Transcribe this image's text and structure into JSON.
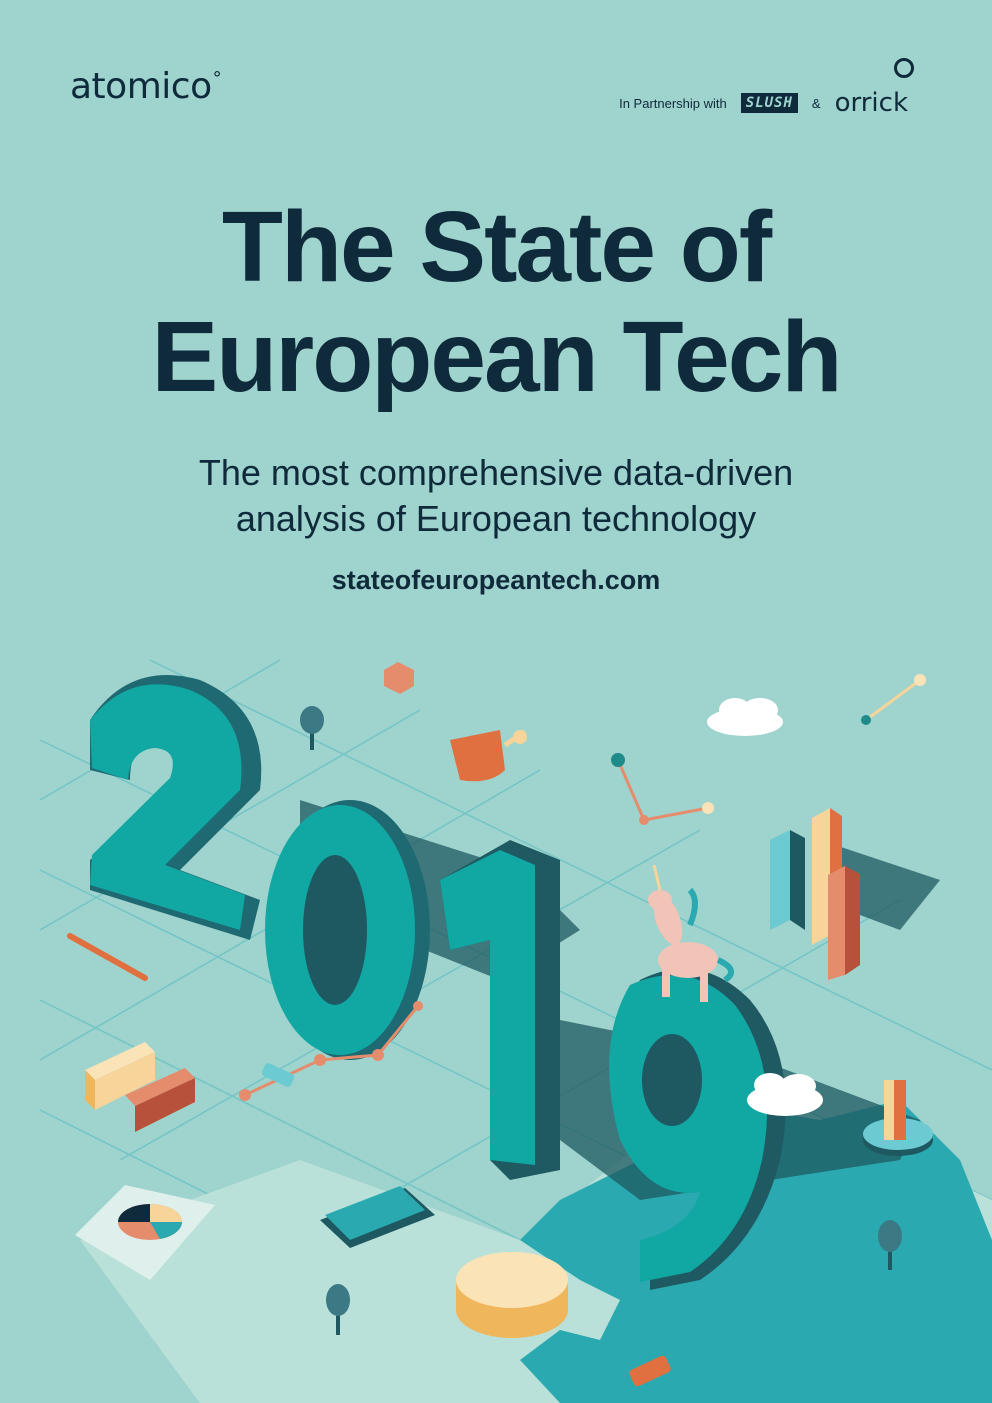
{
  "header": {
    "logo_text": "atomico",
    "logo_dot": "°",
    "partnership_label": "In Partnership with",
    "partner_1": "SLUSH",
    "ampersand": "&",
    "partner_2": "orrick"
  },
  "cover": {
    "title_line_1": "The State of",
    "title_line_2": "European Tech",
    "subtitle_line_1": "The most comprehensive data-driven",
    "subtitle_line_2": "analysis of European technology",
    "url": "stateofeuropeantech.com",
    "year": "2019"
  },
  "colors": {
    "background": "#9fd3cd",
    "text": "#0f2a3a",
    "teal": "#0fa3a0",
    "teal_dark": "#1f5a63",
    "orange": "#e07040",
    "cream": "#f6d49a",
    "pink": "#f2c4b8"
  }
}
